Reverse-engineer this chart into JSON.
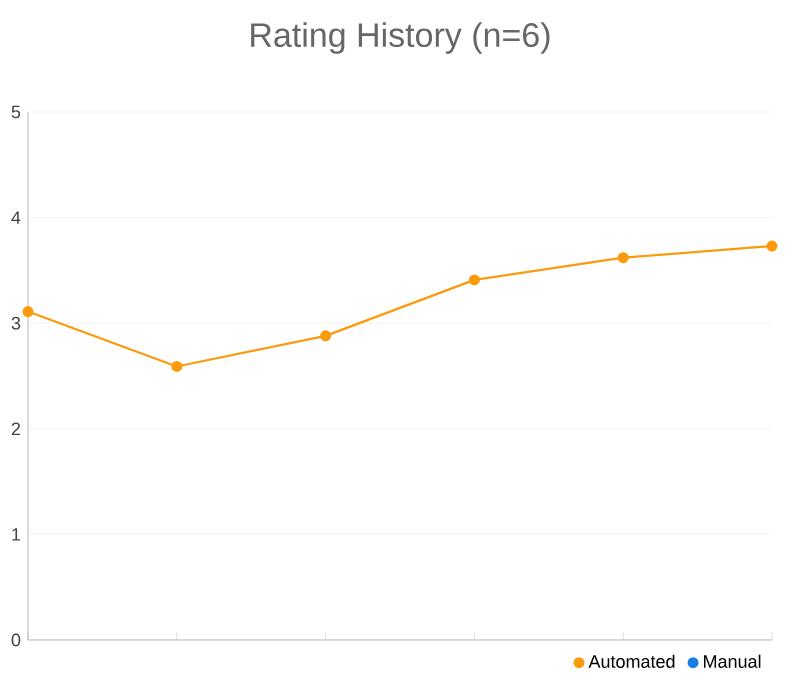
{
  "chart_data": {
    "type": "line",
    "title": "Rating History (n=6)",
    "categories": [
      null,
      null,
      null,
      null,
      null,
      null
    ],
    "series": [
      {
        "name": "Automated",
        "color": "#fb9a0c",
        "values": [
          3.11,
          2.59,
          2.88,
          3.41,
          3.62,
          3.73
        ]
      },
      {
        "name": "Manual",
        "color": "#1a7ee6",
        "values": [
          null,
          null,
          null,
          null,
          null,
          null
        ]
      }
    ],
    "ylim": [
      0,
      5
    ],
    "yticks": [
      0,
      1,
      2,
      3,
      4,
      5
    ],
    "grid": "y",
    "legend": "bottom right",
    "marker": "circle",
    "line_style": "solid"
  }
}
